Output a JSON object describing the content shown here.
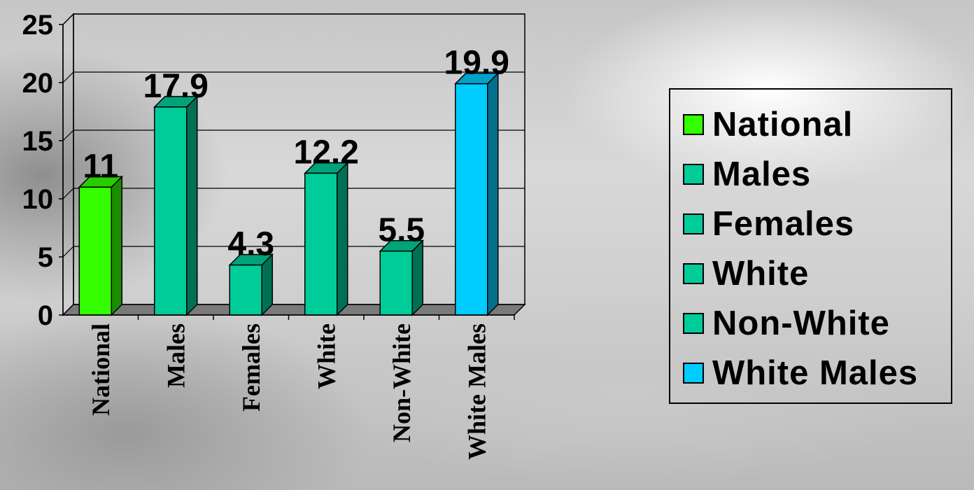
{
  "chart_data": {
    "type": "bar",
    "title": "",
    "xlabel": "",
    "ylabel": "",
    "categories": [
      "National",
      "Males",
      "Females",
      "White",
      "Non-White",
      "White Males"
    ],
    "values": [
      11,
      17.9,
      4.3,
      12.2,
      5.5,
      19.9
    ],
    "value_labels": [
      "11",
      "17.9",
      "4.3",
      "12.2",
      "5.5",
      "19.9"
    ],
    "ylim": [
      0,
      25
    ],
    "yticks": [
      0,
      5,
      10,
      15,
      20,
      25
    ],
    "grid": true,
    "three_d": true,
    "legend_position": "right",
    "series_colors": [
      "#33ff00",
      "#00cc99",
      "#00cc99",
      "#00cc99",
      "#00cc99",
      "#00ccff"
    ]
  },
  "legend": {
    "items": [
      {
        "label": "National",
        "color": "#33ff00"
      },
      {
        "label": "Males",
        "color": "#00cc99"
      },
      {
        "label": "Females",
        "color": "#00cc99"
      },
      {
        "label": "White",
        "color": "#00cc99"
      },
      {
        "label": "Non-White",
        "color": "#00cc99"
      },
      {
        "label": "White Males",
        "color": "#00ccff"
      }
    ]
  }
}
